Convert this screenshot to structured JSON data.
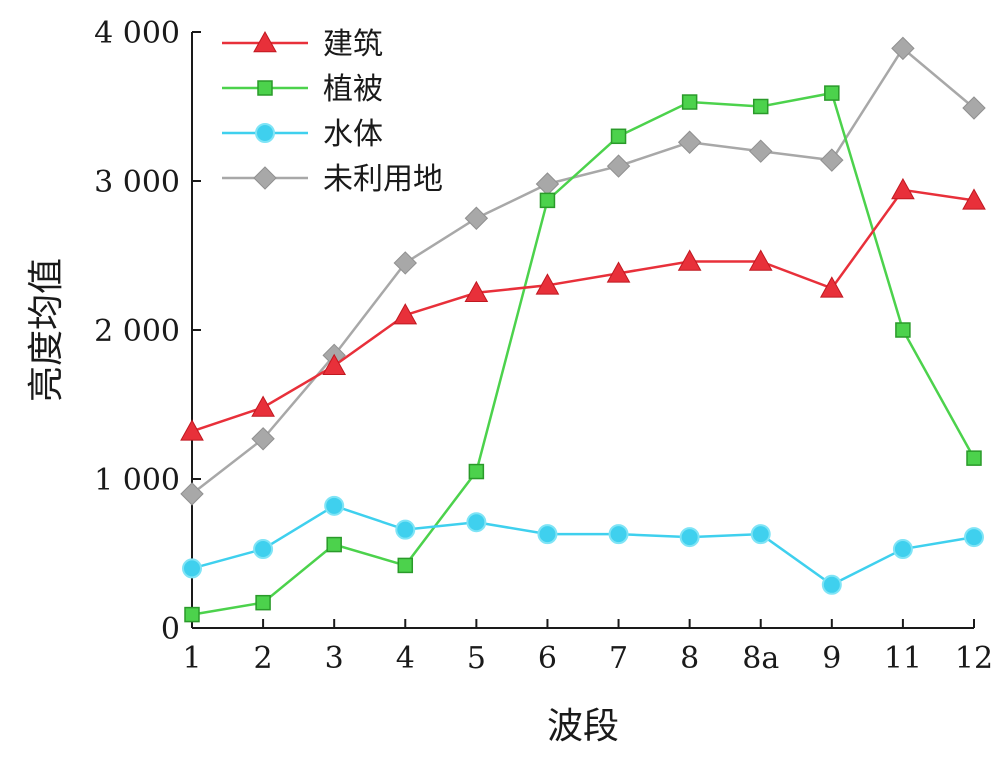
{
  "chart_data": {
    "type": "line",
    "xlabel": "波段",
    "ylabel": "亮度均值",
    "categories": [
      "1",
      "2",
      "3",
      "4",
      "5",
      "6",
      "7",
      "8",
      "8a",
      "9",
      "11",
      "12"
    ],
    "ylim": [
      0,
      4000
    ],
    "yticks": [
      {
        "value": 0,
        "label": "0"
      },
      {
        "value": 1000,
        "label": "1 000"
      },
      {
        "value": 2000,
        "label": "2 000"
      },
      {
        "value": 3000,
        "label": "3 000"
      },
      {
        "value": 4000,
        "label": "4 000"
      }
    ],
    "grid": false,
    "legend_position": "top-left",
    "series": [
      {
        "name": "建筑",
        "color": "#e8303a",
        "marker": "triangle",
        "values": [
          1320,
          1480,
          1760,
          2100,
          2250,
          2300,
          2380,
          2460,
          2460,
          2280,
          2940,
          2870
        ]
      },
      {
        "name": "植被",
        "color": "#4cd24c",
        "marker": "square",
        "values": [
          90,
          170,
          560,
          420,
          1050,
          2870,
          3300,
          3530,
          3500,
          3590,
          2000,
          1140
        ]
      },
      {
        "name": "水体",
        "color": "#3fd0ee",
        "marker": "circle",
        "values": [
          400,
          530,
          820,
          660,
          710,
          630,
          630,
          610,
          630,
          290,
          530,
          610
        ]
      },
      {
        "name": "未利用地",
        "color": "#a8a8a8",
        "marker": "diamond",
        "values": [
          900,
          1270,
          1830,
          2450,
          2750,
          2980,
          3100,
          3260,
          3200,
          3140,
          3890,
          3490
        ]
      }
    ]
  }
}
